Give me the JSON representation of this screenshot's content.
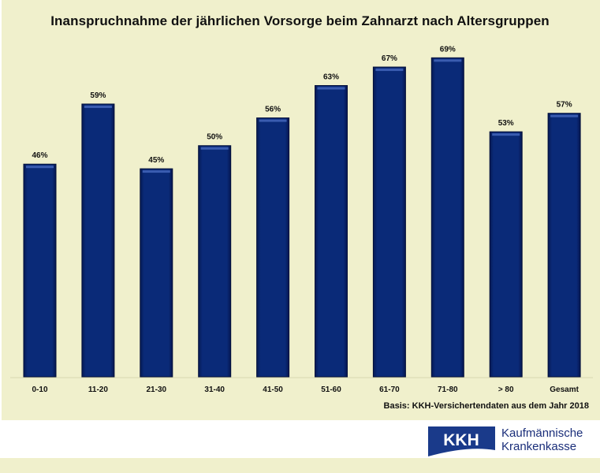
{
  "chart_data": {
    "type": "bar",
    "title": "Inanspruchnahme der jährlichen Vorsorge beim Zahnarzt nach Altersgruppen",
    "categories": [
      "0-10",
      "11-20",
      "21-30",
      "31-40",
      "41-50",
      "51-60",
      "61-70",
      "71-80",
      "> 80",
      "Gesamt"
    ],
    "values": [
      46,
      59,
      45,
      50,
      56,
      63,
      67,
      69,
      53,
      57
    ],
    "value_labels": [
      "46%",
      "59%",
      "45%",
      "50%",
      "56%",
      "63%",
      "67%",
      "69%",
      "53%",
      "57%"
    ],
    "unit": "%",
    "xlabel": "",
    "ylabel": "",
    "ylim": [
      0,
      81.5
    ],
    "grid": false,
    "legend": "none",
    "bar_color": "#082470",
    "background_color": "#f0f0cc",
    "annotation": "Basis: KKH-Versichertendaten aus dem Jahr 2018"
  },
  "logo": {
    "mark": "KKH",
    "line1": "Kaufmännische",
    "line2": "Krankenkasse",
    "color": "#1a3a8a"
  }
}
